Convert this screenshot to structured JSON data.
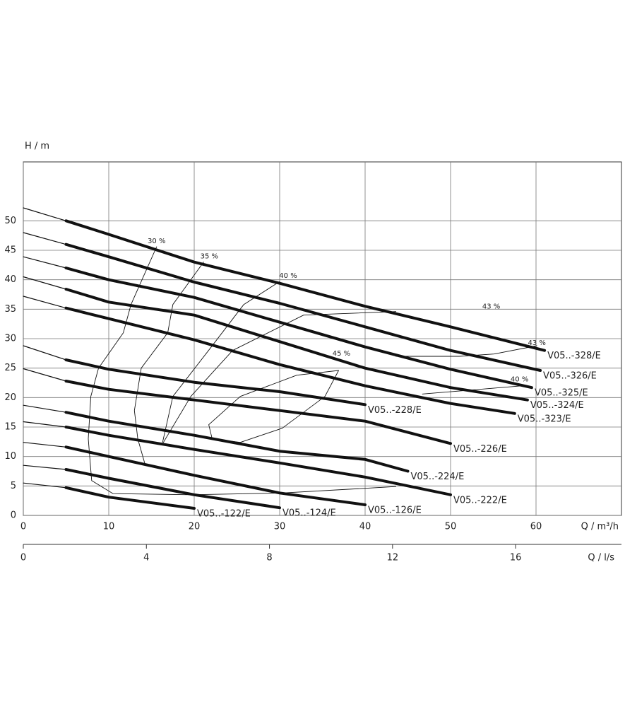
{
  "chart_data": {
    "type": "line",
    "y_label": "H / m",
    "x_label": "Q / m³/h",
    "x2_label": "Q / l/s",
    "xlim": [
      0,
      70
    ],
    "xticks": [
      0,
      10,
      20,
      30,
      40,
      50,
      60
    ],
    "ylim": [
      0,
      60
    ],
    "yticks": [
      0,
      5,
      10,
      15,
      20,
      25,
      30,
      35,
      40,
      45,
      50
    ],
    "x2lim": [
      0,
      19.44
    ],
    "x2ticks": [
      0,
      4,
      8,
      12,
      16
    ],
    "grid": true,
    "color": "#111111",
    "series": [
      {
        "name": "V05..-328/E",
        "x": [
          0,
          5,
          10,
          20,
          30,
          40,
          50,
          61
        ],
        "values": [
          52.2,
          50,
          47.7,
          43,
          39.4,
          35.5,
          32,
          28
        ]
      },
      {
        "name": "V05..-326/E",
        "x": [
          0,
          5,
          10,
          20,
          30,
          40,
          50,
          60.5
        ],
        "values": [
          48,
          46,
          43.9,
          39.6,
          36,
          32,
          28,
          24.6
        ]
      },
      {
        "name": "V05..-325/E",
        "x": [
          0,
          5,
          10,
          20,
          30,
          40,
          50,
          59.5
        ],
        "values": [
          43.9,
          42,
          40,
          37,
          32.8,
          28.6,
          24.8,
          21.7
        ]
      },
      {
        "name": "V05..-324/E",
        "x": [
          0,
          5,
          10,
          20,
          30,
          40,
          50,
          59
        ],
        "values": [
          40.5,
          38.4,
          36.2,
          34,
          29.5,
          25,
          21.7,
          19.6
        ]
      },
      {
        "name": "V05..-323/E",
        "x": [
          0,
          5,
          10,
          20,
          30,
          40,
          50,
          57.5
        ],
        "values": [
          37.2,
          35.2,
          33.4,
          29.8,
          25.6,
          22,
          19,
          17.3
        ]
      },
      {
        "name": "V05..-228/E",
        "x": [
          0,
          5,
          10,
          20,
          30,
          40
        ],
        "values": [
          28.8,
          26.4,
          24.8,
          22.6,
          21,
          18.8
        ]
      },
      {
        "name": "V05..-226/E",
        "x": [
          0,
          5,
          10,
          20,
          30,
          40,
          50
        ],
        "values": [
          24.9,
          22.8,
          21.4,
          19.6,
          17.8,
          16,
          12.2
        ]
      },
      {
        "name": "V05..-224/E",
        "x": [
          0,
          5,
          10,
          20,
          30,
          40,
          45
        ],
        "values": [
          18.7,
          17.5,
          16,
          13.6,
          10.9,
          9.5,
          7.5
        ]
      },
      {
        "name": "V05..-222/E",
        "x": [
          0,
          5,
          10,
          20,
          30,
          40,
          50
        ],
        "values": [
          15.9,
          15,
          13.6,
          11.2,
          8.9,
          6.5,
          3.5
        ]
      },
      {
        "name": "V05..-126/E",
        "x": [
          0,
          5,
          10,
          20,
          30,
          40
        ],
        "values": [
          12.4,
          11.6,
          10,
          6.8,
          3.8,
          1.8
        ]
      },
      {
        "name": "V05..-124/E",
        "x": [
          0,
          5,
          10,
          20,
          30
        ],
        "values": [
          8.5,
          7.8,
          6.3,
          3.5,
          1.3
        ]
      },
      {
        "name": "V05..-122/E",
        "x": [
          0,
          5,
          10,
          20
        ],
        "values": [
          5.5,
          4.7,
          3.1,
          1.2
        ]
      }
    ],
    "efficiency_curves": [
      {
        "name": "30 %",
        "x": [
          15.6,
          12.6,
          11.7,
          8.8,
          7.9,
          7.6,
          8,
          10.5,
          19.6,
          30.3,
          43.6
        ],
        "values": [
          45.6,
          35.8,
          31,
          25,
          20.2,
          13,
          5.9,
          3.7,
          3.5,
          3.8,
          4.9
        ]
      },
      {
        "name": "35 %",
        "x": [
          21.1,
          17.5,
          16.9,
          13.8,
          13,
          13.4,
          14.2
        ],
        "values": [
          43,
          35.8,
          31,
          25,
          17.8,
          13,
          8.9
        ]
      },
      {
        "name": "40 %",
        "x": [
          30,
          25.8,
          22,
          17.5,
          16.3
        ],
        "values": [
          39.7,
          35.8,
          28.6,
          20.2,
          12.4
        ]
      },
      {
        "name": "43 %",
        "x": [
          43.6,
          32.8,
          24.5,
          19.6,
          16.4
        ],
        "values": [
          34.6,
          34,
          28,
          20.2,
          12.4
        ]
      },
      {
        "name": "45 %",
        "x": [
          36.9,
          35.3,
          30.3,
          25.4,
          22.1,
          21.7,
          25.4,
          32,
          36.9
        ],
        "values": [
          24.6,
          20.2,
          14.8,
          12.4,
          13,
          15.4,
          20.2,
          23.8,
          24.6
        ]
      },
      {
        "name": "43 %",
        "x": [
          43.6,
          51,
          55.1,
          60.1
        ],
        "values": [
          27,
          27,
          27.4,
          28.8
        ]
      },
      {
        "name": "40 %",
        "x": [
          46.7,
          58.4
        ],
        "values": [
          20.6,
          22
        ]
      }
    ]
  }
}
